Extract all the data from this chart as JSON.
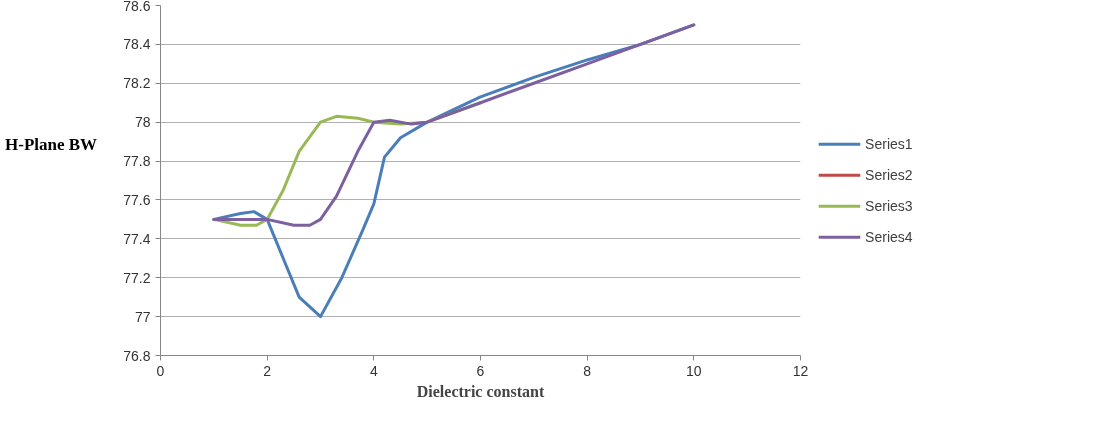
{
  "chart_data": {
    "type": "line",
    "xlabel": "Dielectric constant",
    "ylabel": "H-Plane BW",
    "xlim": [
      0,
      12
    ],
    "xticks": [
      0,
      2,
      4,
      6,
      8,
      10,
      12
    ],
    "ylim": [
      76.8,
      78.6
    ],
    "yticks": [
      76.8,
      77,
      77.2,
      77.4,
      77.6,
      77.8,
      78,
      78.2,
      78.4,
      78.6
    ],
    "grid": "y",
    "legend": "right",
    "marker": "none",
    "line_style": "solid",
    "series": [
      {
        "name": "Series1",
        "color": "#4a7ebb",
        "x": [
          1,
          1.5,
          1.75,
          2,
          2.3,
          2.6,
          3,
          3.4,
          3.8,
          4,
          4.2,
          4.5,
          5,
          6,
          7,
          8,
          9,
          10
        ],
        "values": [
          77.5,
          77.53,
          77.54,
          77.5,
          77.3,
          77.1,
          77.0,
          77.2,
          77.45,
          77.58,
          77.82,
          77.92,
          78.0,
          78.13,
          78.23,
          78.32,
          78.4,
          78.5
        ]
      },
      {
        "name": "Series2",
        "color": "#be4b48"
      },
      {
        "name": "Series3",
        "color": "#98b954",
        "x": [
          1,
          1.5,
          1.8,
          2,
          2.3,
          2.6,
          3,
          3.3,
          3.7,
          4,
          4.5,
          5,
          6
        ],
        "values": [
          77.5,
          77.47,
          77.47,
          77.5,
          77.65,
          77.85,
          78.0,
          78.03,
          78.02,
          78.0,
          77.99,
          78.0,
          78.1
        ]
      },
      {
        "name": "Series4",
        "color": "#7d60a0",
        "x": [
          1,
          1.5,
          2,
          2.5,
          2.8,
          3,
          3.3,
          3.7,
          4,
          4.3,
          4.7,
          5,
          6,
          7,
          8,
          9,
          10
        ],
        "values": [
          77.5,
          77.5,
          77.5,
          77.47,
          77.47,
          77.5,
          77.62,
          77.85,
          78.0,
          78.01,
          77.99,
          78.0,
          78.1,
          78.2,
          78.3,
          78.4,
          78.5
        ]
      }
    ]
  }
}
